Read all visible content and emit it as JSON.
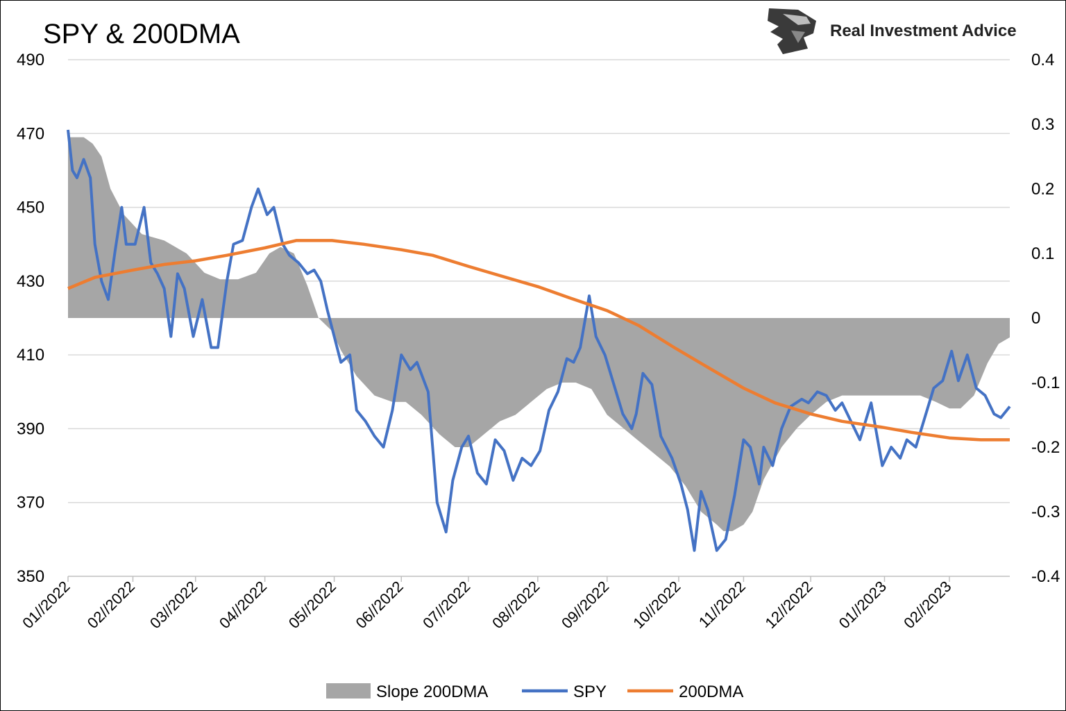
{
  "brand": {
    "name": "Real Investment Advice",
    "logo_icon": "eagle-head-icon"
  },
  "chart_data": {
    "type": "line",
    "title": "SPY & 200DMA",
    "x_type": "date",
    "x_range": [
      "2022-01-03",
      "2023-02-28"
    ],
    "x_ticks": [
      "01//2022",
      "02//2022",
      "03//2022",
      "04//2022",
      "05//2022",
      "06//2022",
      "07//2022",
      "08//2022",
      "09//2022",
      "10//2022",
      "11//2022",
      "12//2022",
      "01//2023",
      "02//2023"
    ],
    "x_tick_dates": [
      "2022-01-03",
      "2022-02-01",
      "2022-03-01",
      "2022-04-01",
      "2022-05-02",
      "2022-06-01",
      "2022-07-01",
      "2022-08-01",
      "2022-09-01",
      "2022-10-03",
      "2022-11-01",
      "2022-12-01",
      "2023-01-03",
      "2023-02-01"
    ],
    "y_left": {
      "range": [
        350,
        490
      ],
      "ticks": [
        "350",
        "370",
        "390",
        "410",
        "430",
        "450",
        "470",
        "490"
      ]
    },
    "y_right": {
      "range": [
        -0.4,
        0.4
      ],
      "ticks": [
        "-0.4",
        "-0.3",
        "-0.2",
        "-0.1",
        "0",
        "0.1",
        "0.2",
        "0.3",
        "0.4"
      ]
    },
    "grid": true,
    "legend_position": "bottom",
    "colors": {
      "slope": "#a6a6a6",
      "spy": "#4472c4",
      "dma": "#ed7d31",
      "grid": "#d9d9d9"
    },
    "legend": [
      "Slope 200DMA",
      "SPY",
      "200DMA"
    ],
    "series": [
      {
        "name": "Slope 200DMA",
        "axis": "right",
        "type": "area",
        "x": [
          "2022-01-03",
          "2022-01-10",
          "2022-01-14",
          "2022-01-18",
          "2022-01-22",
          "2022-01-28",
          "2022-02-05",
          "2022-02-15",
          "2022-02-25",
          "2022-03-05",
          "2022-03-12",
          "2022-03-20",
          "2022-03-28",
          "2022-04-03",
          "2022-04-08",
          "2022-04-14",
          "2022-04-20",
          "2022-04-25",
          "2022-05-01",
          "2022-05-05",
          "2022-05-12",
          "2022-05-20",
          "2022-05-28",
          "2022-06-03",
          "2022-06-10",
          "2022-06-18",
          "2022-06-25",
          "2022-07-01",
          "2022-07-08",
          "2022-07-15",
          "2022-07-22",
          "2022-07-29",
          "2022-08-05",
          "2022-08-12",
          "2022-08-18",
          "2022-08-25",
          "2022-09-01",
          "2022-09-08",
          "2022-09-15",
          "2022-09-22",
          "2022-09-29",
          "2022-10-06",
          "2022-10-13",
          "2022-10-20",
          "2022-10-23",
          "2022-10-27",
          "2022-11-01",
          "2022-11-05",
          "2022-11-10",
          "2022-11-18",
          "2022-11-25",
          "2022-12-01",
          "2022-12-08",
          "2022-12-15",
          "2022-12-22",
          "2022-12-29",
          "2023-01-05",
          "2023-01-12",
          "2023-01-19",
          "2023-01-26",
          "2023-02-01",
          "2023-02-06",
          "2023-02-12",
          "2023-02-18",
          "2023-02-23",
          "2023-02-28"
        ],
        "y": [
          0.28,
          0.28,
          0.27,
          0.25,
          0.2,
          0.16,
          0.13,
          0.12,
          0.1,
          0.07,
          0.06,
          0.06,
          0.07,
          0.1,
          0.11,
          0.1,
          0.05,
          0.0,
          -0.02,
          -0.05,
          -0.09,
          -0.12,
          -0.13,
          -0.13,
          -0.15,
          -0.18,
          -0.2,
          -0.2,
          -0.18,
          -0.16,
          -0.15,
          -0.13,
          -0.11,
          -0.1,
          -0.1,
          -0.11,
          -0.15,
          -0.17,
          -0.19,
          -0.21,
          -0.23,
          -0.26,
          -0.3,
          -0.32,
          -0.33,
          -0.33,
          -0.32,
          -0.3,
          -0.25,
          -0.2,
          -0.17,
          -0.15,
          -0.13,
          -0.12,
          -0.12,
          -0.12,
          -0.12,
          -0.12,
          -0.12,
          -0.13,
          -0.14,
          -0.14,
          -0.12,
          -0.07,
          -0.04,
          -0.03
        ]
      },
      {
        "name": "SPY",
        "axis": "left",
        "type": "line",
        "x": [
          "2022-01-03",
          "2022-01-05",
          "2022-01-07",
          "2022-01-10",
          "2022-01-13",
          "2022-01-15",
          "2022-01-18",
          "2022-01-21",
          "2022-01-24",
          "2022-01-27",
          "2022-01-29",
          "2022-02-02",
          "2022-02-06",
          "2022-02-09",
          "2022-02-12",
          "2022-02-15",
          "2022-02-18",
          "2022-02-21",
          "2022-02-24",
          "2022-02-28",
          "2022-03-04",
          "2022-03-08",
          "2022-03-11",
          "2022-03-15",
          "2022-03-18",
          "2022-03-22",
          "2022-03-26",
          "2022-03-29",
          "2022-04-02",
          "2022-04-05",
          "2022-04-09",
          "2022-04-12",
          "2022-04-16",
          "2022-04-20",
          "2022-04-23",
          "2022-04-26",
          "2022-04-29",
          "2022-05-02",
          "2022-05-05",
          "2022-05-09",
          "2022-05-12",
          "2022-05-16",
          "2022-05-20",
          "2022-05-24",
          "2022-05-28",
          "2022-06-01",
          "2022-06-05",
          "2022-06-08",
          "2022-06-13",
          "2022-06-17",
          "2022-06-21",
          "2022-06-24",
          "2022-06-28",
          "2022-07-01",
          "2022-07-05",
          "2022-07-09",
          "2022-07-13",
          "2022-07-17",
          "2022-07-21",
          "2022-07-25",
          "2022-07-29",
          "2022-08-02",
          "2022-08-06",
          "2022-08-10",
          "2022-08-14",
          "2022-08-17",
          "2022-08-20",
          "2022-08-24",
          "2022-08-27",
          "2022-08-31",
          "2022-09-04",
          "2022-09-08",
          "2022-09-12",
          "2022-09-14",
          "2022-09-17",
          "2022-09-21",
          "2022-09-25",
          "2022-09-30",
          "2022-10-04",
          "2022-10-07",
          "2022-10-10",
          "2022-10-13",
          "2022-10-16",
          "2022-10-20",
          "2022-10-24",
          "2022-10-28",
          "2022-11-01",
          "2022-11-04",
          "2022-11-08",
          "2022-11-10",
          "2022-11-14",
          "2022-11-18",
          "2022-11-22",
          "2022-11-27",
          "2022-11-30",
          "2022-12-04",
          "2022-12-08",
          "2022-12-12",
          "2022-12-15",
          "2022-12-19",
          "2022-12-23",
          "2022-12-28",
          "2023-01-02",
          "2023-01-06",
          "2023-01-10",
          "2023-01-13",
          "2023-01-17",
          "2023-01-21",
          "2023-01-25",
          "2023-01-29",
          "2023-02-02",
          "2023-02-05",
          "2023-02-09",
          "2023-02-13",
          "2023-02-17",
          "2023-02-21",
          "2023-02-24",
          "2023-02-28"
        ],
        "y": [
          471,
          460,
          458,
          463,
          458,
          440,
          430,
          425,
          438,
          450,
          440,
          440,
          450,
          435,
          432,
          428,
          415,
          432,
          428,
          415,
          425,
          412,
          412,
          430,
          440,
          441,
          450,
          455,
          448,
          450,
          440,
          437,
          435,
          432,
          433,
          430,
          422,
          415,
          408,
          410,
          395,
          392,
          388,
          385,
          395,
          410,
          406,
          408,
          400,
          370,
          362,
          376,
          385,
          388,
          378,
          375,
          387,
          384,
          376,
          382,
          380,
          384,
          395,
          400,
          409,
          408,
          412,
          426,
          415,
          410,
          402,
          394,
          390,
          394,
          405,
          402,
          388,
          382,
          375,
          368,
          357,
          373,
          368,
          357,
          360,
          372,
          387,
          385,
          375,
          385,
          380,
          390,
          396,
          398,
          397,
          400,
          399,
          395,
          397,
          392,
          387,
          397,
          380,
          385,
          382,
          387,
          385,
          393,
          401,
          403,
          411,
          403,
          410,
          401,
          399,
          394,
          393,
          396
        ]
      },
      {
        "name": "200DMA",
        "axis": "left",
        "type": "line",
        "x": [
          "2022-01-03",
          "2022-01-15",
          "2022-02-01",
          "2022-02-15",
          "2022-03-01",
          "2022-03-15",
          "2022-04-01",
          "2022-04-15",
          "2022-05-01",
          "2022-05-15",
          "2022-06-01",
          "2022-06-15",
          "2022-07-01",
          "2022-07-15",
          "2022-08-01",
          "2022-08-15",
          "2022-09-01",
          "2022-09-15",
          "2022-10-01",
          "2022-10-15",
          "2022-11-01",
          "2022-11-15",
          "2022-12-01",
          "2022-12-15",
          "2023-01-01",
          "2023-01-15",
          "2023-02-01",
          "2023-02-15",
          "2023-02-28"
        ],
        "y": [
          428,
          431,
          433,
          434.5,
          435.5,
          437,
          439,
          441,
          441,
          440,
          438.5,
          437,
          434,
          431.5,
          428.5,
          425.5,
          422,
          418,
          412,
          407,
          401,
          397,
          394,
          392,
          390.5,
          389,
          387.5,
          387,
          387
        ]
      }
    ]
  }
}
